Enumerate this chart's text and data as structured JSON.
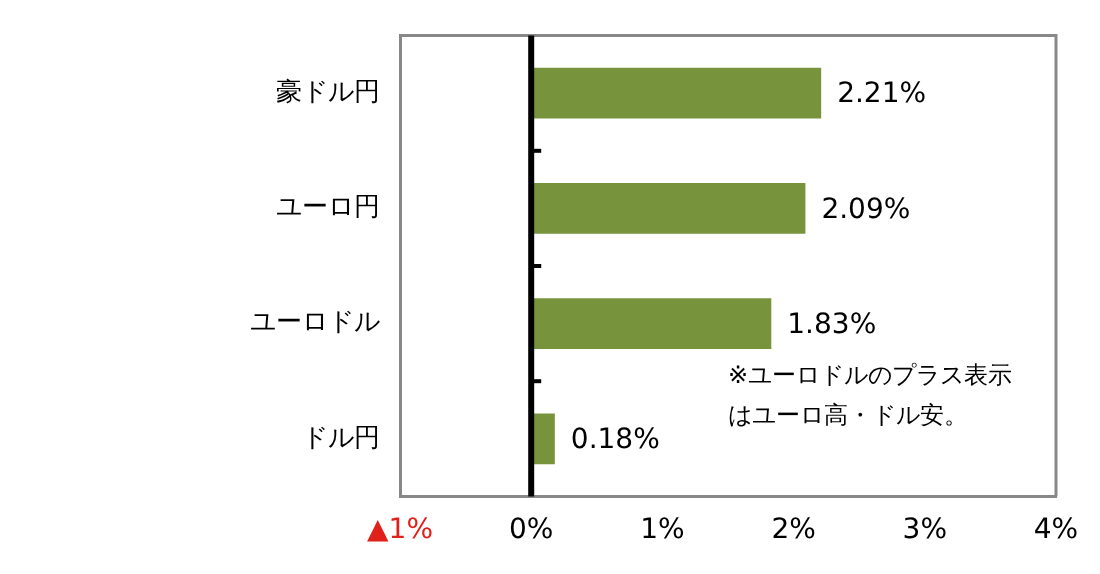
{
  "chart_data": {
    "type": "bar",
    "orientation": "horizontal",
    "categories": [
      "豪ドル円",
      "ユーロ円",
      "ユーロドル",
      "ドル円"
    ],
    "values": [
      2.21,
      2.09,
      1.83,
      0.18
    ],
    "color": "#77933c",
    "value_labels": [
      "2.21%",
      "2.09%",
      "1.83%",
      "0.18%"
    ],
    "xlim": [
      -1,
      4
    ],
    "xticks": [
      {
        "value": -1,
        "label": "▲1%"
      },
      {
        "value": 0,
        "label": "0%"
      },
      {
        "value": 1,
        "label": "1%"
      },
      {
        "value": 2,
        "label": "2%"
      },
      {
        "value": 3,
        "label": "3%"
      },
      {
        "value": 4,
        "label": "4%"
      }
    ],
    "annotations": [
      "※ユーロドルのプラス表示はユーロ高・ドル安。"
    ],
    "legend": false
  }
}
